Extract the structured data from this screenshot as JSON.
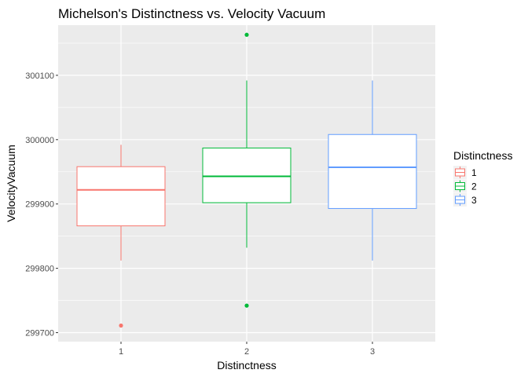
{
  "chart_data": {
    "type": "boxplot",
    "title": "Michelson's Distinctness vs. Velocity Vacuum",
    "xlabel": "Distinctness",
    "ylabel": "VelocityVacuum",
    "categories": [
      "1",
      "2",
      "3"
    ],
    "y_ticks": [
      299700,
      299800,
      299900,
      300000,
      300100
    ],
    "y_tick_labels": [
      "299700",
      "299800",
      "299900",
      "300000",
      "300100"
    ],
    "ylim": [
      299686,
      300178
    ],
    "grid": true,
    "legend": {
      "title": "Distinctness",
      "position": "right",
      "entries": [
        "1",
        "2",
        "3"
      ]
    },
    "series": [
      {
        "name": "1",
        "color": "#F8766D",
        "whisker_low": 299812,
        "q1": 299866,
        "median": 299922,
        "q3": 299958,
        "whisker_high": 299992,
        "outliers": [
          299711
        ]
      },
      {
        "name": "2",
        "color": "#00BA38",
        "whisker_low": 299832,
        "q1": 299902,
        "median": 299943,
        "q3": 299987,
        "whisker_high": 300092,
        "outliers": [
          299742,
          300163
        ]
      },
      {
        "name": "3",
        "color": "#619CFF",
        "whisker_low": 299812,
        "q1": 299893,
        "median": 299957,
        "q3": 300008,
        "whisker_high": 300092,
        "outliers": []
      }
    ]
  }
}
